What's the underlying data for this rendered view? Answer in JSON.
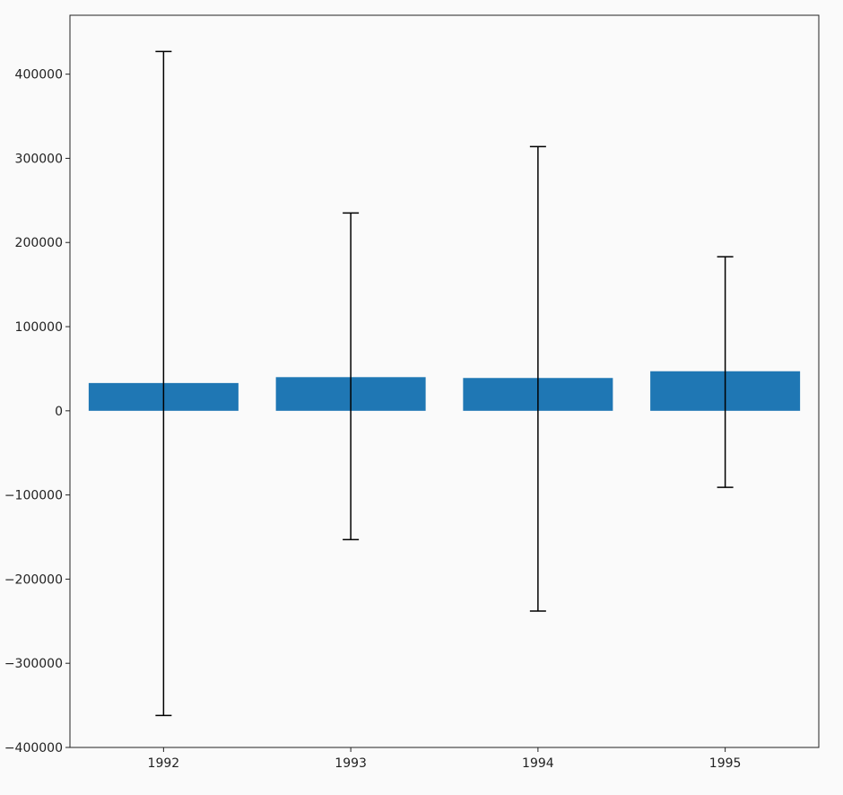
{
  "chart_data": {
    "type": "bar",
    "title": "",
    "xlabel": "",
    "ylabel": "",
    "categories": [
      "1992",
      "1993",
      "1994",
      "1995"
    ],
    "values": [
      33000,
      40000,
      39000,
      47000
    ],
    "error_low": [
      -362000,
      -153000,
      -238000,
      -91000
    ],
    "error_high": [
      427000,
      235000,
      314000,
      183000
    ],
    "ylim": [
      -400000,
      470000
    ],
    "yticks": [
      -400000,
      -300000,
      -200000,
      -100000,
      0,
      100000,
      200000,
      300000,
      400000
    ],
    "ytick_labels": [
      "−400000",
      "−300000",
      "−200000",
      "−100000",
      "0",
      "100000",
      "200000",
      "300000",
      "400000"
    ],
    "grid": false,
    "legend": "none",
    "colors": {
      "bar": "#1f77b4",
      "error": "#000000",
      "axes": "#222222",
      "background": "#fafafa"
    }
  }
}
